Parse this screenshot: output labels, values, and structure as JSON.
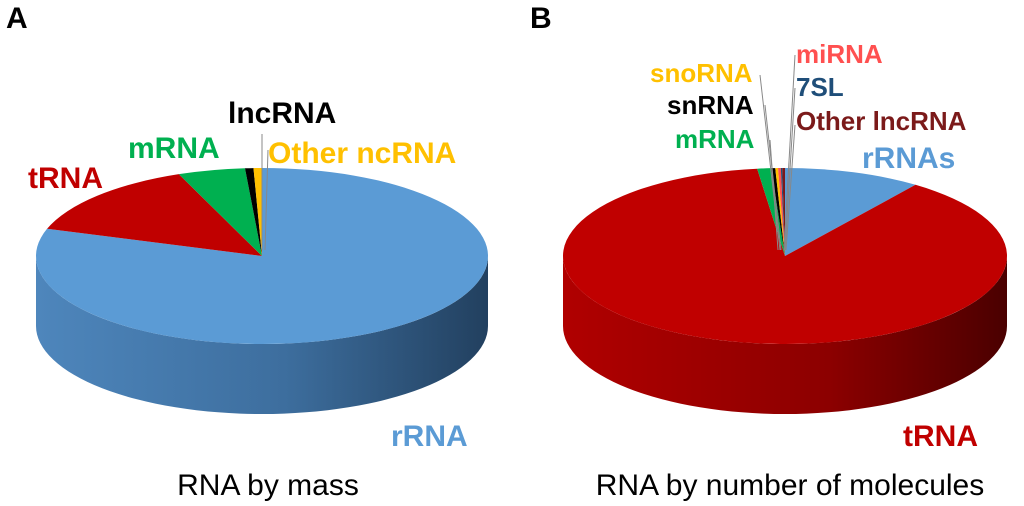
{
  "chart_data": [
    {
      "type": "pie",
      "panel_label": "A",
      "title": "RNA by mass",
      "slices": [
        {
          "name": "rRNA",
          "value": 80.0,
          "color": "#5B9BD5",
          "label_color": "#5B9BD5"
        },
        {
          "name": "tRNA",
          "value": 14.0,
          "color": "#C00000",
          "label_color": "#C00000"
        },
        {
          "name": "mRNA",
          "value": 4.8,
          "color": "#00B050",
          "label_color": "#00B050"
        },
        {
          "name": "lncRNA",
          "value": 0.6,
          "color": "#000000",
          "label_color": "#000000"
        },
        {
          "name": "Other ncRNA",
          "value": 0.6,
          "color": "#FFC000",
          "label_color": "#FFC000"
        }
      ]
    },
    {
      "type": "pie",
      "panel_label": "B",
      "title": "RNA by number of molecules",
      "slices": [
        {
          "name": "rRNAs",
          "value": 10.0,
          "color": "#5B9BD5",
          "label_color": "#5B9BD5"
        },
        {
          "name": "tRNA",
          "value": 88.0,
          "color": "#C00000",
          "label_color": "#C00000"
        },
        {
          "name": "mRNA",
          "value": 1.0,
          "color": "#00B050",
          "label_color": "#00B050"
        },
        {
          "name": "snRNA",
          "value": 0.3,
          "color": "#000000",
          "label_color": "#000000"
        },
        {
          "name": "snoRNA",
          "value": 0.2,
          "color": "#FFC000",
          "label_color": "#FFC000"
        },
        {
          "name": "miRNA",
          "value": 0.2,
          "color": "#FF5050",
          "label_color": "#FF5050"
        },
        {
          "name": "7SL",
          "value": 0.1,
          "color": "#1F4E79",
          "label_color": "#1F4E79"
        },
        {
          "name": "Other lncRNA",
          "value": 0.2,
          "color": "#7B1A1A",
          "label_color": "#7B1A1A"
        }
      ]
    }
  ]
}
